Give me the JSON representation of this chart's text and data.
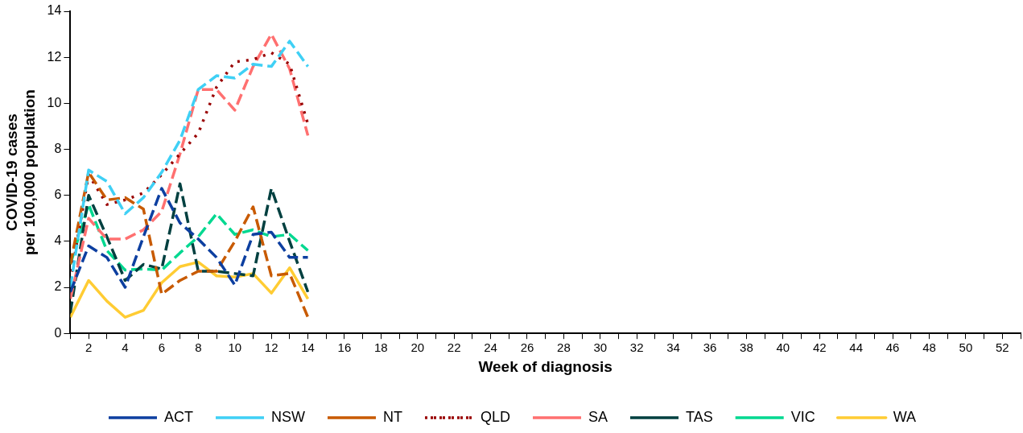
{
  "chart_data": {
    "type": "line",
    "xlabel": "Week of diagnosis",
    "ylabel": "COVID-19 cases\nper 100,000 population",
    "x": [
      1,
      2,
      3,
      4,
      5,
      6,
      7,
      8,
      9,
      10,
      11,
      12,
      13,
      14
    ],
    "xlim": [
      1,
      53
    ],
    "xticks": [
      {
        "value": 1,
        "label": null
      },
      2,
      {
        "value": 3,
        "label": null
      },
      4,
      {
        "value": 5,
        "label": null
      },
      6,
      {
        "value": 7,
        "label": null
      },
      8,
      {
        "value": 9,
        "label": null
      },
      10,
      {
        "value": 11,
        "label": null
      },
      12,
      {
        "value": 13,
        "label": null
      },
      14,
      {
        "value": 15,
        "label": null
      },
      16,
      {
        "value": 17,
        "label": null
      },
      18,
      {
        "value": 19,
        "label": null
      },
      20,
      {
        "value": 21,
        "label": null
      },
      22,
      {
        "value": 23,
        "label": null
      },
      24,
      {
        "value": 25,
        "label": null
      },
      26,
      {
        "value": 27,
        "label": null
      },
      28,
      {
        "value": 29,
        "label": null
      },
      30,
      {
        "value": 31,
        "label": null
      },
      32,
      {
        "value": 33,
        "label": null
      },
      34,
      {
        "value": 35,
        "label": null
      },
      36,
      {
        "value": 37,
        "label": null
      },
      38,
      {
        "value": 39,
        "label": null
      },
      40,
      {
        "value": 41,
        "label": null
      },
      42,
      {
        "value": 43,
        "label": null
      },
      44,
      {
        "value": 45,
        "label": null
      },
      46,
      {
        "value": 47,
        "label": null
      },
      48,
      {
        "value": 49,
        "label": null
      },
      50,
      {
        "value": 51,
        "label": null
      },
      52,
      {
        "value": 53,
        "label": null
      }
    ],
    "ylim": [
      0,
      14
    ],
    "yticks": [
      0,
      2,
      4,
      6,
      8,
      10,
      12,
      14
    ],
    "grid": false,
    "legend": "bottom",
    "marker": "none",
    "series": [
      {
        "name": "ACT",
        "color": "#0d3fa0",
        "line_style": "dashed",
        "values": [
          1.8,
          3.8,
          3.3,
          2.0,
          4.2,
          6.3,
          4.8,
          4.1,
          3.3,
          2.1,
          4.3,
          4.4,
          3.3,
          3.3
        ]
      },
      {
        "name": "NSW",
        "color": "#3fd0f5",
        "line_style": "dashed",
        "values": [
          2.0,
          7.1,
          6.6,
          5.2,
          5.9,
          7.0,
          8.4,
          10.6,
          11.2,
          11.1,
          11.7,
          11.6,
          12.7,
          11.6
        ]
      },
      {
        "name": "NT",
        "color": "#c85a00",
        "line_style": "dashed",
        "values": [
          3.0,
          7.0,
          5.8,
          5.9,
          5.4,
          1.7,
          2.3,
          2.7,
          2.7,
          4.0,
          5.5,
          2.5,
          2.6,
          0.7
        ]
      },
      {
        "name": "QLD",
        "color": "#990000",
        "line_style": "dotted",
        "values": [
          2.3,
          6.9,
          5.6,
          5.8,
          6.1,
          6.9,
          7.8,
          8.7,
          10.7,
          11.8,
          11.9,
          12.2,
          11.7,
          9.1
        ]
      },
      {
        "name": "SA",
        "color": "#ff7070",
        "line_style": "dashed",
        "values": [
          1.5,
          5.0,
          4.1,
          4.1,
          4.5,
          5.3,
          7.8,
          10.6,
          10.6,
          9.7,
          11.6,
          13.0,
          11.5,
          8.6
        ]
      },
      {
        "name": "TAS",
        "color": "#004040",
        "line_style": "dashed",
        "values": [
          0.9,
          6.0,
          4.2,
          2.3,
          3.0,
          2.8,
          6.5,
          2.7,
          2.7,
          2.6,
          2.5,
          6.3,
          4.0,
          1.8
        ]
      },
      {
        "name": "VIC",
        "color": "#00d890",
        "line_style": "dashed",
        "values": [
          3.0,
          5.6,
          3.6,
          2.75,
          2.8,
          2.75,
          3.5,
          4.2,
          5.2,
          4.3,
          4.5,
          4.2,
          4.3,
          3.6
        ]
      },
      {
        "name": "WA",
        "color": "#ffcc33",
        "line_style": "solid",
        "values": [
          0.7,
          2.3,
          1.4,
          0.7,
          1.0,
          2.2,
          2.9,
          3.1,
          2.5,
          2.45,
          2.6,
          1.75,
          2.85,
          1.5
        ]
      }
    ]
  }
}
